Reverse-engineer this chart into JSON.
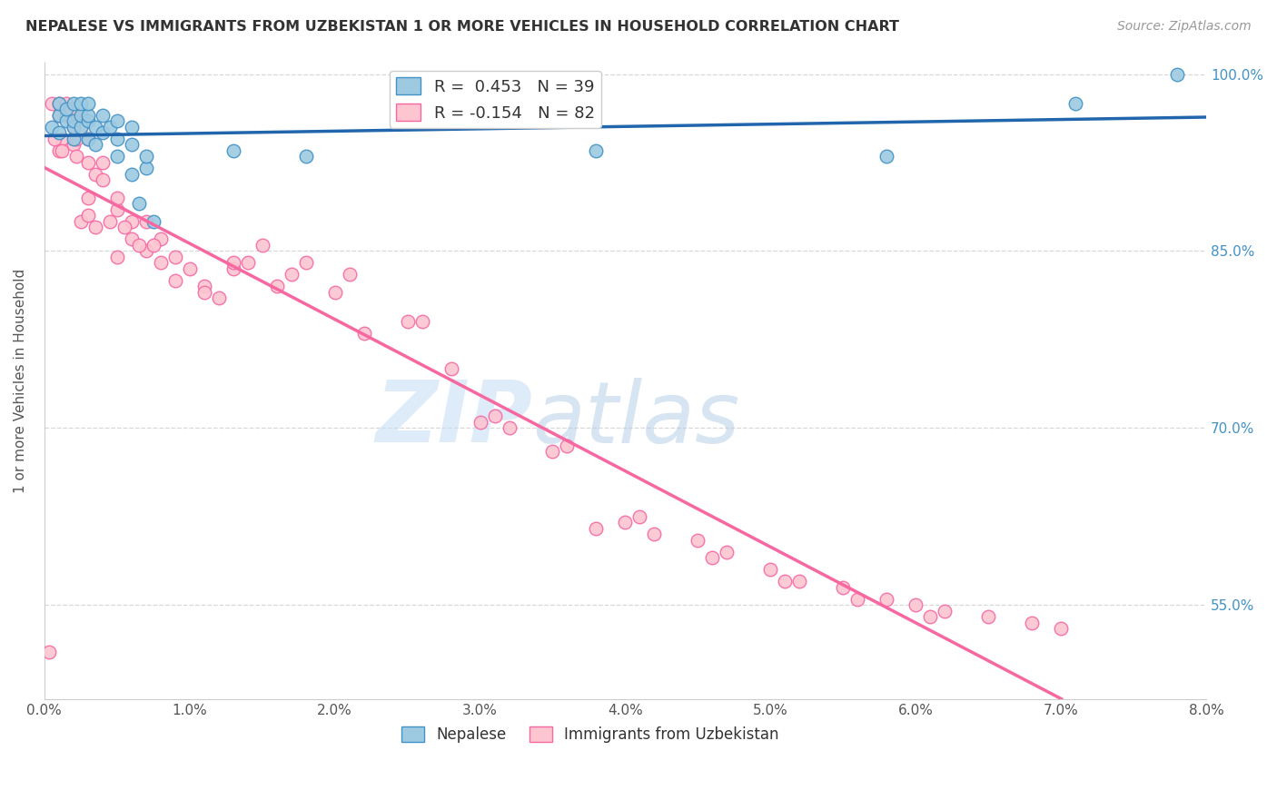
{
  "title": "NEPALESE VS IMMIGRANTS FROM UZBEKISTAN 1 OR MORE VEHICLES IN HOUSEHOLD CORRELATION CHART",
  "source": "Source: ZipAtlas.com",
  "ylabel": "1 or more Vehicles in Household",
  "x_min": 0.0,
  "x_max": 0.08,
  "y_min": 0.47,
  "y_max": 1.01,
  "x_ticks": [
    0.0,
    0.01,
    0.02,
    0.03,
    0.04,
    0.05,
    0.06,
    0.07,
    0.08
  ],
  "x_tick_labels": [
    "0.0%",
    "1.0%",
    "2.0%",
    "3.0%",
    "4.0%",
    "5.0%",
    "6.0%",
    "7.0%",
    "8.0%"
  ],
  "y_ticks": [
    0.55,
    0.7,
    0.85,
    1.0
  ],
  "y_tick_labels": [
    "55.0%",
    "70.0%",
    "85.0%",
    "100.0%"
  ],
  "nepalese_color": "#9ecae1",
  "nepalese_edge_color": "#4292c6",
  "uzbekistan_color": "#fcc5d0",
  "uzbekistan_edge_color": "#f768a1",
  "blue_line_color": "#2166ac",
  "pink_line_color": "#f768a1",
  "legend_blue_label": "R =  0.453   N = 39",
  "legend_pink_label": "R = -0.154   N = 82",
  "watermark_zip": "ZIP",
  "watermark_atlas": "atlas",
  "watermark_color_zip": "#c8dff0",
  "watermark_color_atlas": "#b8cfe8",
  "marker_size": 110,
  "nepalese_x": [
    0.0005,
    0.001,
    0.001,
    0.0015,
    0.0015,
    0.002,
    0.002,
    0.002,
    0.002,
    0.0025,
    0.0025,
    0.0025,
    0.003,
    0.003,
    0.003,
    0.003,
    0.0035,
    0.0035,
    0.004,
    0.004,
    0.0045,
    0.005,
    0.005,
    0.005,
    0.006,
    0.006,
    0.006,
    0.0065,
    0.007,
    0.007,
    0.0075,
    0.013,
    0.018,
    0.025,
    0.038,
    0.058,
    0.071,
    0.078,
    0.001
  ],
  "nepalese_y": [
    0.955,
    0.965,
    0.975,
    0.96,
    0.97,
    0.945,
    0.955,
    0.96,
    0.975,
    0.955,
    0.965,
    0.975,
    0.945,
    0.96,
    0.965,
    0.975,
    0.94,
    0.955,
    0.95,
    0.965,
    0.955,
    0.93,
    0.945,
    0.96,
    0.915,
    0.94,
    0.955,
    0.89,
    0.92,
    0.93,
    0.875,
    0.935,
    0.93,
    0.96,
    0.935,
    0.93,
    0.975,
    1.0,
    0.95
  ],
  "uzbekistan_x": [
    0.0003,
    0.0005,
    0.001,
    0.001,
    0.001,
    0.0012,
    0.0015,
    0.0015,
    0.002,
    0.002,
    0.002,
    0.0022,
    0.0025,
    0.0025,
    0.003,
    0.003,
    0.003,
    0.003,
    0.0035,
    0.004,
    0.004,
    0.005,
    0.005,
    0.005,
    0.006,
    0.006,
    0.007,
    0.007,
    0.008,
    0.008,
    0.009,
    0.01,
    0.011,
    0.012,
    0.013,
    0.014,
    0.015,
    0.016,
    0.018,
    0.02,
    0.022,
    0.025,
    0.028,
    0.03,
    0.032,
    0.035,
    0.038,
    0.04,
    0.042,
    0.045,
    0.047,
    0.05,
    0.052,
    0.055,
    0.058,
    0.06,
    0.062,
    0.065,
    0.068,
    0.07,
    0.0007,
    0.0012,
    0.0018,
    0.0022,
    0.0035,
    0.0045,
    0.0055,
    0.0065,
    0.0075,
    0.009,
    0.011,
    0.013,
    0.017,
    0.021,
    0.026,
    0.031,
    0.036,
    0.041,
    0.046,
    0.051,
    0.056,
    0.061
  ],
  "uzbekistan_y": [
    0.51,
    0.975,
    0.965,
    0.935,
    0.975,
    0.945,
    0.965,
    0.975,
    0.94,
    0.955,
    0.965,
    0.93,
    0.875,
    0.955,
    0.88,
    0.895,
    0.925,
    0.945,
    0.915,
    0.91,
    0.925,
    0.845,
    0.885,
    0.895,
    0.86,
    0.875,
    0.85,
    0.875,
    0.84,
    0.86,
    0.825,
    0.835,
    0.82,
    0.81,
    0.835,
    0.84,
    0.855,
    0.82,
    0.84,
    0.815,
    0.78,
    0.79,
    0.75,
    0.705,
    0.7,
    0.68,
    0.615,
    0.62,
    0.61,
    0.605,
    0.595,
    0.58,
    0.57,
    0.565,
    0.555,
    0.55,
    0.545,
    0.54,
    0.535,
    0.53,
    0.945,
    0.935,
    0.97,
    0.945,
    0.87,
    0.875,
    0.87,
    0.855,
    0.855,
    0.845,
    0.815,
    0.84,
    0.83,
    0.83,
    0.79,
    0.71,
    0.685,
    0.625,
    0.59,
    0.57,
    0.555,
    0.54
  ]
}
